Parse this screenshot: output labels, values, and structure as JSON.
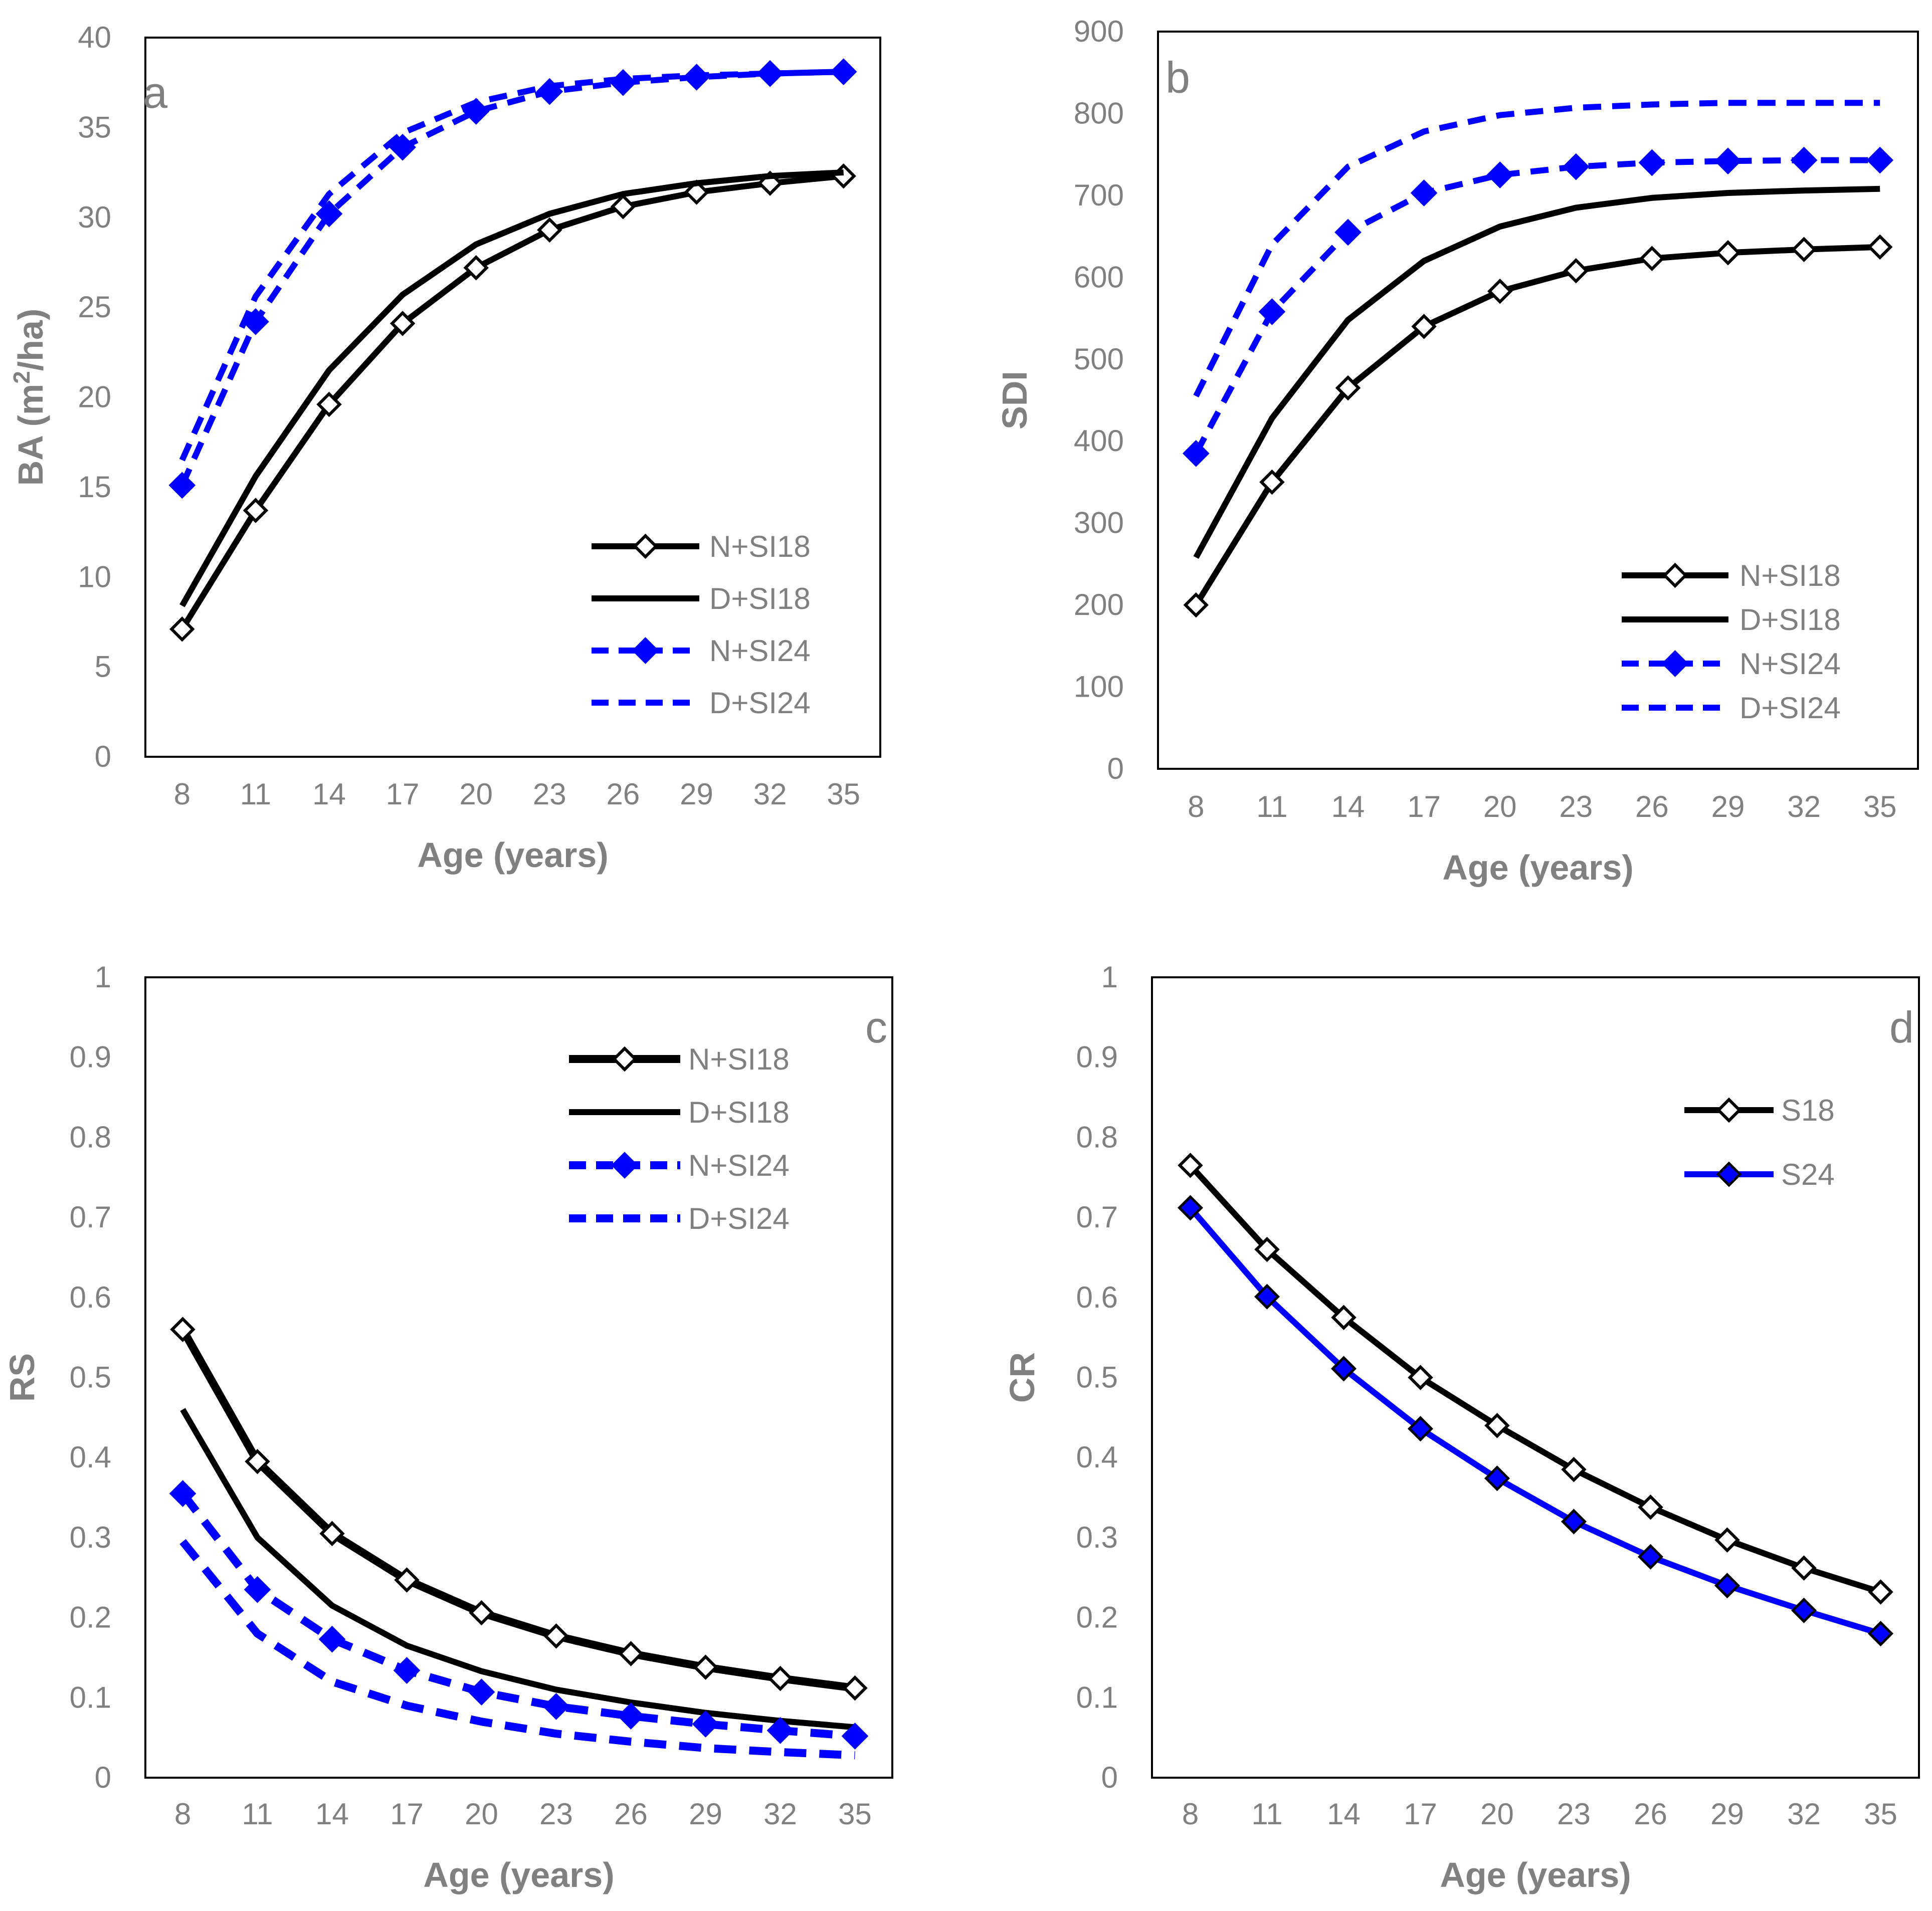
{
  "colors": {
    "black": "#000000",
    "blue": "#0000ff",
    "frame": "#000000",
    "text": "#808080",
    "background": "#ffffff"
  },
  "chart_data": [
    {
      "panel": "a",
      "type": "line",
      "ylabel": "BA (m²/ha)",
      "xlabel": "Age (years)",
      "x": [
        8,
        11,
        14,
        17,
        20,
        23,
        26,
        29,
        32,
        35
      ],
      "x_ticks": [
        "8",
        "11",
        "14",
        "17",
        "20",
        "23",
        "26",
        "29",
        "32",
        "35"
      ],
      "ylim": [
        0,
        40
      ],
      "y_ticks": [
        "0",
        "5",
        "10",
        "15",
        "20",
        "25",
        "30",
        "35",
        "40"
      ],
      "legend_position": "middle-right",
      "series": [
        {
          "name": "N+SI18",
          "color": "#000000",
          "dash": "solid",
          "marker": "diamond-open",
          "values": [
            7.1,
            13.7,
            19.6,
            24.1,
            27.2,
            29.3,
            30.6,
            31.4,
            31.9,
            32.3
          ]
        },
        {
          "name": "D+SI18",
          "color": "#000000",
          "dash": "solid",
          "marker": "none",
          "values": [
            8.4,
            15.6,
            21.5,
            25.7,
            28.5,
            30.2,
            31.3,
            31.9,
            32.3,
            32.5
          ]
        },
        {
          "name": "N+SI24",
          "color": "#0000ff",
          "dash": "dashed",
          "marker": "diamond-filled",
          "values": [
            15.1,
            24.2,
            30.2,
            33.9,
            35.9,
            37.0,
            37.5,
            37.8,
            38.0,
            38.1
          ]
        },
        {
          "name": "D+SI24",
          "color": "#0000ff",
          "dash": "dashed",
          "marker": "none",
          "values": [
            16.5,
            25.6,
            31.3,
            34.7,
            36.4,
            37.3,
            37.7,
            37.9,
            38.0,
            38.1
          ]
        }
      ]
    },
    {
      "panel": "b",
      "type": "line",
      "ylabel": "SDI",
      "xlabel": "Age (years)",
      "x": [
        8,
        11,
        14,
        17,
        20,
        23,
        26,
        29,
        32,
        35
      ],
      "x_ticks": [
        "8",
        "11",
        "14",
        "17",
        "20",
        "23",
        "26",
        "29",
        "32",
        "35"
      ],
      "ylim": [
        0,
        900
      ],
      "y_ticks": [
        "0",
        "100",
        "200",
        "300",
        "400",
        "500",
        "600",
        "700",
        "800",
        "900"
      ],
      "legend_position": "bottom-right",
      "series": [
        {
          "name": "N+SI18",
          "color": "#000000",
          "dash": "solid",
          "marker": "diamond-open",
          "values": [
            200,
            350,
            465,
            540,
            583,
            608,
            623,
            630,
            634,
            637
          ]
        },
        {
          "name": "D+SI18",
          "color": "#000000",
          "dash": "solid",
          "marker": "none",
          "values": [
            258,
            428,
            548,
            620,
            662,
            685,
            697,
            703,
            706,
            708
          ]
        },
        {
          "name": "N+SI24",
          "color": "#0000ff",
          "dash": "dashed",
          "marker": "diamond-filled",
          "values": [
            385,
            558,
            655,
            703,
            725,
            735,
            740,
            742,
            743,
            743
          ]
        },
        {
          "name": "D+SI24",
          "color": "#0000ff",
          "dash": "dashed",
          "marker": "none",
          "values": [
            455,
            640,
            735,
            778,
            798,
            807,
            811,
            813,
            813,
            813
          ]
        }
      ]
    },
    {
      "panel": "c",
      "type": "line",
      "ylabel": "RS",
      "xlabel": "Age (years)",
      "x": [
        8,
        11,
        14,
        17,
        20,
        23,
        26,
        29,
        32,
        35
      ],
      "x_ticks": [
        "8",
        "11",
        "14",
        "17",
        "20",
        "23",
        "26",
        "29",
        "32",
        "35"
      ],
      "ylim": [
        0,
        1
      ],
      "y_ticks": [
        "0",
        "0.1",
        "0.2",
        "0.3",
        "0.4",
        "0.5",
        "0.6",
        "0.7",
        "0.8",
        "0.9",
        "1"
      ],
      "legend_position": "top-right",
      "series": [
        {
          "name": "N+SI18",
          "color": "#000000",
          "dash": "solid",
          "thick": true,
          "marker": "diamond-open",
          "values": [
            0.56,
            0.395,
            0.305,
            0.247,
            0.206,
            0.177,
            0.155,
            0.138,
            0.124,
            0.112
          ]
        },
        {
          "name": "D+SI18",
          "color": "#000000",
          "dash": "solid",
          "marker": "none",
          "values": [
            0.46,
            0.3,
            0.215,
            0.165,
            0.133,
            0.11,
            0.094,
            0.081,
            0.071,
            0.063
          ]
        },
        {
          "name": "N+SI24",
          "color": "#0000ff",
          "dash": "dashed",
          "thick": true,
          "marker": "diamond-filled",
          "values": [
            0.355,
            0.235,
            0.173,
            0.134,
            0.107,
            0.089,
            0.077,
            0.067,
            0.059,
            0.052
          ]
        },
        {
          "name": "D+SI24",
          "color": "#0000ff",
          "dash": "dashed",
          "thick": true,
          "marker": "none",
          "values": [
            0.295,
            0.18,
            0.12,
            0.09,
            0.07,
            0.055,
            0.045,
            0.037,
            0.032,
            0.028
          ]
        }
      ]
    },
    {
      "panel": "d",
      "type": "line",
      "ylabel": "CR",
      "xlabel": "Age (years)",
      "x": [
        8,
        11,
        14,
        17,
        20,
        23,
        26,
        29,
        32,
        35
      ],
      "x_ticks": [
        "8",
        "11",
        "14",
        "17",
        "20",
        "23",
        "26",
        "29",
        "32",
        "35"
      ],
      "ylim": [
        0,
        1
      ],
      "y_ticks": [
        "0",
        "0.1",
        "0.2",
        "0.3",
        "0.4",
        "0.5",
        "0.6",
        "0.7",
        "0.8",
        "0.9",
        "1"
      ],
      "legend_position": "top-right",
      "series": [
        {
          "name": "S18",
          "color": "#000000",
          "dash": "solid",
          "marker": "diamond-open",
          "values": [
            0.765,
            0.66,
            0.575,
            0.5,
            0.44,
            0.385,
            0.338,
            0.297,
            0.262,
            0.232
          ]
        },
        {
          "name": "S24",
          "color": "#0000ff",
          "dash": "solid",
          "marker": "diamond-blue-outlined",
          "values": [
            0.712,
            0.601,
            0.511,
            0.436,
            0.374,
            0.32,
            0.276,
            0.24,
            0.209,
            0.18
          ]
        }
      ]
    }
  ]
}
